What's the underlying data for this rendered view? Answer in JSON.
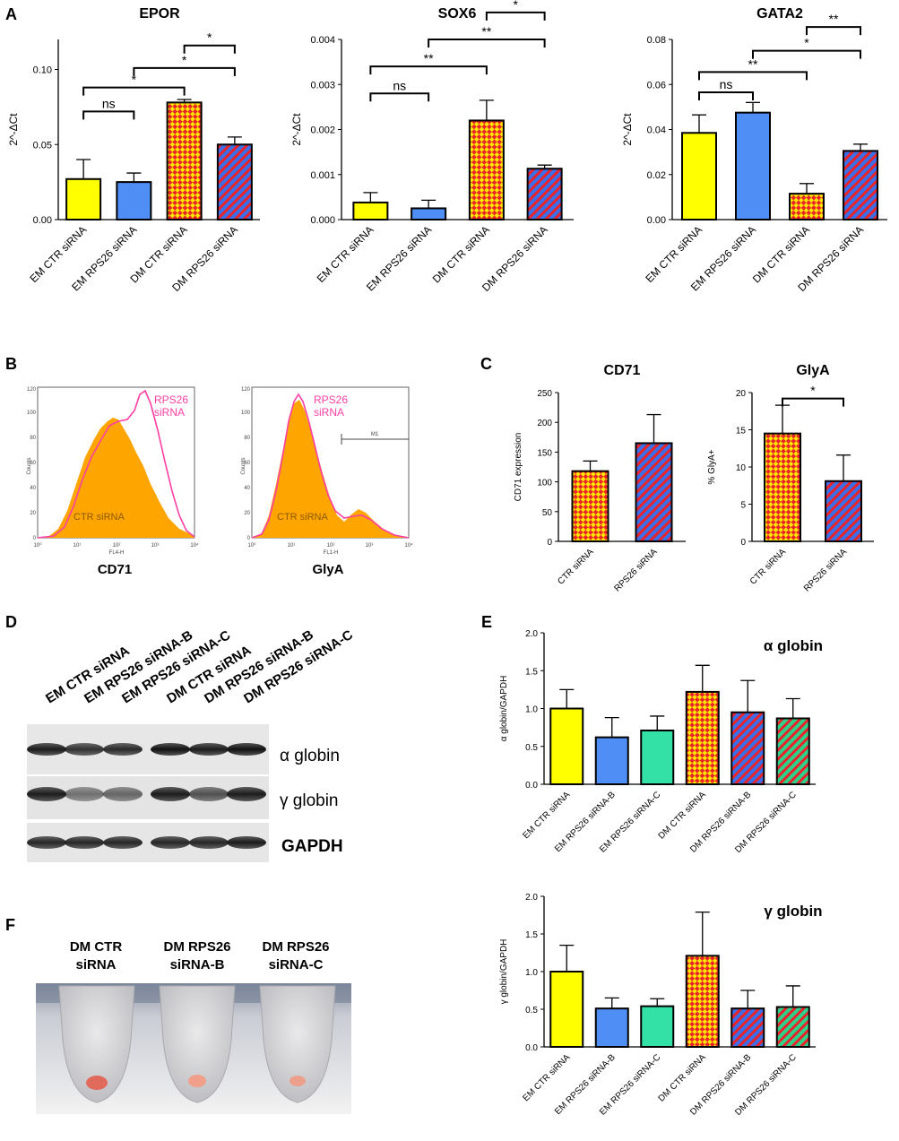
{
  "colors": {
    "yellow": "#ffff00",
    "blue": "#4f8ff5",
    "teal": "#33e0a6",
    "orange_fill": "#ff9900",
    "hatch_red": "#e8242a",
    "hatch_yellow": "#ffe600",
    "hatch_blue": "#3b6ee8",
    "hatch_green": "#2fd08a",
    "flow_orange": "#ffa500",
    "flow_pink": "#ff3fa4"
  },
  "panels": {
    "A": "A",
    "B": "B",
    "C": "C",
    "D": "D",
    "E": "E",
    "F": "F"
  },
  "chart_data": [
    {
      "id": "epor",
      "type": "bar",
      "title": "EPOR",
      "ylabel": "2^-ΔCt",
      "ylim": [
        0,
        0.12
      ],
      "yticks": [
        0,
        0.05,
        0.1
      ],
      "ytick_labels": [
        "0.00",
        "0.05",
        "0.10"
      ],
      "categories": [
        "EM CTR siRNA",
        "EM RPS26 siRNA",
        "DM CTR siRNA",
        "DM RPS26 siRNA"
      ],
      "values": [
        0.027,
        0.025,
        0.078,
        0.05
      ],
      "errors": [
        0.013,
        0.006,
        0.002,
        0.005
      ],
      "fills": [
        "yellow",
        "blue",
        "check",
        "stripe-blue"
      ],
      "brackets": [
        {
          "a": 0,
          "b": 1,
          "y": 0.072,
          "label": "ns"
        },
        {
          "a": 0,
          "b": 2,
          "y": 0.088,
          "label": "*"
        },
        {
          "a": 1,
          "b": 3,
          "y": 0.101,
          "label": "*"
        },
        {
          "a": 2,
          "b": 3,
          "y": 0.116,
          "label": "*"
        }
      ]
    },
    {
      "id": "sox6",
      "type": "bar",
      "title": "SOX6",
      "ylabel": "2^-ΔCt",
      "ylim": [
        0,
        0.004
      ],
      "yticks": [
        0,
        0.001,
        0.002,
        0.003,
        0.004
      ],
      "ytick_labels": [
        "0.000",
        "0.001",
        "0.002",
        "0.003",
        "0.004"
      ],
      "categories": [
        "EM CTR siRNA",
        "EM RPS26 siRNA",
        "DM CTR siRNA",
        "DM RPS26 siRNA"
      ],
      "values": [
        0.00038,
        0.00025,
        0.0022,
        0.00113
      ],
      "errors": [
        0.00022,
        0.00018,
        0.00045,
        8e-05
      ],
      "fills": [
        "yellow",
        "blue",
        "check",
        "stripe-blue"
      ],
      "brackets": [
        {
          "a": 0,
          "b": 1,
          "y": 0.0028,
          "label": "ns"
        },
        {
          "a": 0,
          "b": 2,
          "y": 0.0034,
          "label": "**"
        },
        {
          "a": 1,
          "b": 3,
          "y": 0.004,
          "label": "**"
        },
        {
          "a": 2,
          "b": 3,
          "y": 0.0046,
          "label": "*"
        }
      ]
    },
    {
      "id": "gata2",
      "type": "bar",
      "title": "GATA2",
      "ylabel": "2^-ΔCt",
      "ylim": [
        0,
        0.08
      ],
      "yticks": [
        0,
        0.02,
        0.04,
        0.06,
        0.08
      ],
      "ytick_labels": [
        "0.00",
        "0.02",
        "0.04",
        "0.06",
        "0.08"
      ],
      "categories": [
        "EM CTR siRNA",
        "EM RPS26 siRNA",
        "DM CTR siRNA",
        "DM RPS26 siRNA"
      ],
      "values": [
        0.0385,
        0.0475,
        0.0115,
        0.0305
      ],
      "errors": [
        0.008,
        0.0045,
        0.0045,
        0.003
      ],
      "fills": [
        "yellow",
        "blue",
        "check",
        "stripe-blue"
      ],
      "brackets": [
        {
          "a": 0,
          "b": 1,
          "y": 0.0565,
          "label": "ns"
        },
        {
          "a": 0,
          "b": 2,
          "y": 0.0655,
          "label": "**"
        },
        {
          "a": 1,
          "b": 3,
          "y": 0.075,
          "label": "*"
        },
        {
          "a": 2,
          "b": 3,
          "y": 0.0855,
          "label": "**"
        }
      ]
    },
    {
      "id": "cd71",
      "type": "bar",
      "title": "CD71",
      "ylabel": "CD71 expression",
      "ylim": [
        0,
        250
      ],
      "yticks": [
        0,
        50,
        100,
        150,
        200,
        250
      ],
      "ytick_labels": [
        "0",
        "50",
        "100",
        "150",
        "200",
        "250"
      ],
      "categories": [
        "CTR siRNA",
        "RPS26 siRNA"
      ],
      "values": [
        118,
        165
      ],
      "errors": [
        17,
        48
      ],
      "fills": [
        "check",
        "stripe-blue"
      ],
      "brackets": []
    },
    {
      "id": "glya",
      "type": "bar",
      "title": "GlyA",
      "ylabel": "% GlyA+",
      "ylim": [
        0,
        20
      ],
      "yticks": [
        0,
        5,
        10,
        15,
        20
      ],
      "ytick_labels": [
        "0",
        "5",
        "10",
        "15",
        "20"
      ],
      "categories": [
        "CTR siRNA",
        "RPS26 siRNA"
      ],
      "values": [
        14.5,
        8.1
      ],
      "errors": [
        3.8,
        3.5
      ],
      "fills": [
        "check",
        "stripe-blue"
      ],
      "brackets": [
        {
          "a": 0,
          "b": 1,
          "y": 19.2,
          "label": "*"
        }
      ]
    },
    {
      "id": "aglobin",
      "type": "bar",
      "title": "α globin",
      "ylabel": "α globin/GAPDH",
      "ylim": [
        0,
        2.0
      ],
      "yticks": [
        0,
        0.5,
        1.0,
        1.5,
        2.0
      ],
      "ytick_labels": [
        "0.0",
        "0.5",
        "1.0",
        "1.5",
        "2.0"
      ],
      "categories": [
        "EM CTR siRNA",
        "EM RPS26 siRNA-B",
        "EM RPS26 siRNA-C",
        "DM CTR siRNA",
        "DM RPS26 siRNA-B",
        "DM RPS26 siRNA-C"
      ],
      "values": [
        1.0,
        0.62,
        0.71,
        1.22,
        0.95,
        0.87
      ],
      "errors": [
        0.25,
        0.26,
        0.19,
        0.35,
        0.42,
        0.26
      ],
      "fills": [
        "yellow",
        "blue",
        "teal",
        "check",
        "stripe-blue",
        "stripe-green"
      ],
      "brackets": []
    },
    {
      "id": "gglobin",
      "type": "bar",
      "title": "γ globin",
      "ylabel": "γ globin/GAPDH",
      "ylim": [
        0,
        2.0
      ],
      "yticks": [
        0,
        0.5,
        1.0,
        1.5,
        2.0
      ],
      "ytick_labels": [
        "0.0",
        "0.5",
        "1.0",
        "1.5",
        "2.0"
      ],
      "categories": [
        "EM CTR siRNA",
        "EM RPS26 siRNA-B",
        "EM RPS26 siRNA-C",
        "DM CTR siRNA",
        "DM RPS26 siRNA-B",
        "DM RPS26 siRNA-C"
      ],
      "values": [
        1.0,
        0.51,
        0.54,
        1.21,
        0.51,
        0.53
      ],
      "errors": [
        0.35,
        0.14,
        0.1,
        0.58,
        0.24,
        0.28
      ],
      "fills": [
        "yellow",
        "blue",
        "teal",
        "check",
        "stripe-blue",
        "stripe-green"
      ],
      "brackets": []
    }
  ],
  "flow": {
    "cd71": {
      "label": "CD71",
      "legend_rps": [
        "RPS26",
        "siRNA"
      ],
      "legend_ctr": "CTR siRNA",
      "yticks": [
        "0",
        "20",
        "40",
        "60",
        "80",
        "100",
        "120"
      ],
      "xticks": [
        "10⁰",
        "10¹",
        "10²",
        "10³",
        "10⁴"
      ],
      "ylabel": "Counts",
      "xlabel": "FL4-H"
    },
    "glya": {
      "label": "GlyA",
      "legend_rps": [
        "RPS26",
        "siRNA"
      ],
      "legend_ctr": "CTR siRNA",
      "yticks": [
        "0",
        "20",
        "40",
        "60",
        "80",
        "100",
        "120"
      ],
      "xticks": [
        "10⁰",
        "10¹",
        "10²",
        "10³",
        "10⁴"
      ],
      "ylabel": "Counts",
      "xlabel": "FL1-H",
      "gate": "M1"
    }
  },
  "blot": {
    "lanes": [
      "EM CTR siRNA",
      "EM RPS26 siRNA-B",
      "EM RPS26 siRNA-C",
      "DM CTR siRNA",
      "DM RPS26 siRNA-B",
      "DM RPS26 siRNA-C"
    ],
    "rows": [
      "α globin",
      "γ globin",
      "GAPDH"
    ]
  },
  "tubes": {
    "labels": [
      [
        "DM CTR",
        "siRNA"
      ],
      [
        "DM RPS26",
        "siRNA-B"
      ],
      [
        "DM RPS26",
        "siRNA-C"
      ]
    ]
  }
}
